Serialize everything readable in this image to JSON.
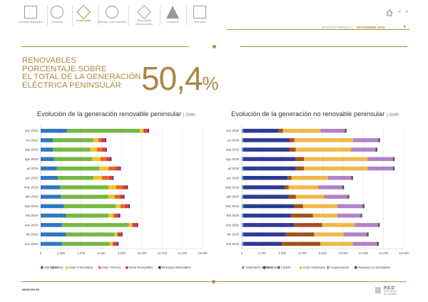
{
  "nav": {
    "items": [
      {
        "label": "Aspectos destacados",
        "icon": "highlights-icon"
      },
      {
        "label": "Demanda",
        "icon": "demand-icon"
      },
      {
        "label": "Producción",
        "icon": "production-icon",
        "active": true
      },
      {
        "label": "Sistemas no peninsulares",
        "icon": "non-peninsular-icon"
      },
      {
        "label": "Intercambios internacionales",
        "icon": "international-icon"
      },
      {
        "label": "Transporte",
        "icon": "transmission-tower-icon"
      },
      {
        "label": "Mercados",
        "icon": "markets-icon"
      }
    ]
  },
  "header": {
    "bulletin": "BOLETÍN MENSUAL",
    "separator": " – ",
    "month": "NOVIEMBRE 2019",
    "page": "5"
  },
  "highlight": {
    "line1": "RENOVABLES",
    "line2": "PORCENTAJE SOBRE",
    "line3": "EL TOTAL DE LA GENERACIÓN",
    "line4": "ELÉCTRICA PENINSULAR",
    "value_main": "50,4",
    "value_unit": "%"
  },
  "footer": {
    "url": "www.ree.es",
    "logo_line1": "RED",
    "logo_line2": "ELÉCTRICA",
    "logo_line3": "DE ESPAÑA"
  },
  "chart_data": [
    {
      "type": "bar",
      "orientation": "horizontal",
      "stacked": true,
      "title": "Evolución de la generación renovable peninsular",
      "unit": "GWh",
      "categories": [
        "nov 2018",
        "dic 2018",
        "ene 2019",
        "feb 2019",
        "mar 2019",
        "abr 2019",
        "may 2019",
        "jun 2019",
        "jul 2019",
        "ago 2019",
        "sep 2019",
        "oct 2019",
        "nov 2019"
      ],
      "xlim": [
        0,
        16000
      ],
      "xticks": [
        0,
        2000,
        4000,
        6000,
        8000,
        10000,
        12000,
        14000,
        16000
      ],
      "xtick_labels": [
        "0",
        "2.000",
        "4.000",
        "6.000",
        "8.000",
        "10.000",
        "12.000",
        "14.000",
        "16.000"
      ],
      "grid": true,
      "legend_position": "bottom",
      "series": [
        {
          "name": "Hidráulica",
          "color": "#2f77c3",
          "values": [
            2100,
            2500,
            2100,
            2500,
            2300,
            2000,
            1900,
            1700,
            1600,
            1300,
            1200,
            1200,
            2600
          ]
        },
        {
          "name": "Eólica",
          "color": "#74b843",
          "values": [
            4700,
            4800,
            6600,
            4200,
            5100,
            4700,
            4800,
            3500,
            4200,
            3800,
            3700,
            4000,
            7200
          ]
        },
        {
          "name": "Solar Fotovoltaica",
          "color": "#f0c528",
          "values": [
            300,
            250,
            300,
            450,
            500,
            600,
            750,
            850,
            900,
            800,
            650,
            500,
            350
          ]
        },
        {
          "name": "Solar Térmica",
          "color": "#e36b27",
          "values": [
            80,
            40,
            100,
            250,
            400,
            500,
            650,
            700,
            700,
            600,
            500,
            280,
            70
          ]
        },
        {
          "name": "Otras Renovables",
          "color": "#d93b3b",
          "values": [
            400,
            380,
            400,
            350,
            400,
            380,
            400,
            350,
            400,
            380,
            380,
            380,
            380
          ]
        },
        {
          "name": "Residuos Renovables",
          "color": "#3b2e86",
          "values": [
            120,
            120,
            130,
            110,
            120,
            110,
            120,
            110,
            120,
            120,
            110,
            120,
            120
          ]
        }
      ]
    },
    {
      "type": "bar",
      "orientation": "horizontal",
      "stacked": true,
      "title": "Evolución de la generación no renovable peninsular",
      "unit": "GWh",
      "categories": [
        "nov 2018",
        "dic 2018",
        "ene 2019",
        "feb 2019",
        "mar 2019",
        "abr 2019",
        "may 2019",
        "jun 2019",
        "jul 2019",
        "ago 2019",
        "sep 2019",
        "oct 2019",
        "nov 2019"
      ],
      "xlim": [
        0,
        16000
      ],
      "xticks": [
        0,
        2000,
        4000,
        6000,
        8000,
        10000,
        12000,
        14000,
        16000
      ],
      "xtick_labels": [
        "0",
        "2.000",
        "4.000",
        "6.000",
        "8.000",
        "10.000",
        "12.000",
        "14.000",
        "16.000"
      ],
      "grid": true,
      "legend_position": "bottom",
      "series": [
        {
          "name": "Turbinación bombeo",
          "color": "#6aa6d8",
          "values": [
            150,
            150,
            150,
            130,
            150,
            140,
            130,
            120,
            130,
            130,
            120,
            130,
            120
          ]
        },
        {
          "name": "Nuclear",
          "color": "#2e3b94",
          "values": [
            3800,
            4200,
            5000,
            4700,
            5000,
            4500,
            4100,
            4400,
            5200,
            5200,
            4600,
            4600,
            3500
          ]
        },
        {
          "name": "Carbón",
          "color": "#a1511f",
          "values": [
            3800,
            2800,
            2800,
            2200,
            900,
            700,
            400,
            400,
            800,
            800,
            600,
            450,
            450
          ]
        },
        {
          "name": "Ciclo combinado",
          "color": "#f0b84a",
          "values": [
            3200,
            2900,
            3200,
            2400,
            3400,
            2800,
            2900,
            3600,
            6300,
            6300,
            5500,
            5800,
            3700
          ]
        },
        {
          "name": "Cogeneración",
          "color": "#b083c7",
          "values": [
            2400,
            2300,
            2300,
            2300,
            2500,
            2300,
            2400,
            2300,
            2500,
            2500,
            2400,
            2500,
            2400
          ]
        },
        {
          "name": "Residuos no renovables",
          "color": "#555555",
          "values": [
            180,
            180,
            180,
            160,
            180,
            170,
            170,
            170,
            170,
            170,
            170,
            180,
            180
          ]
        }
      ]
    }
  ]
}
